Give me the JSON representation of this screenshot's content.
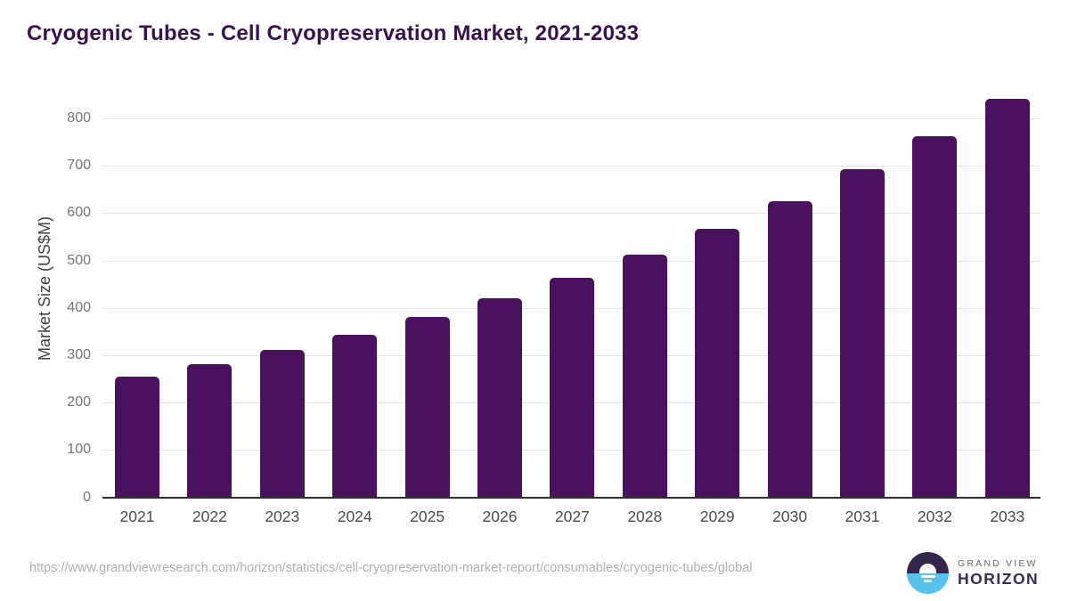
{
  "title": "Cryogenic Tubes - Cell Cryopreservation Market, 2021-2033",
  "source_url": "https://www.grandviewresearch.com/horizon/statistics/cell-cryopreservation-market-report/consumables/cryogenic-tubes/global",
  "logo": {
    "line1": "GRAND VIEW",
    "line2": "HORIZON",
    "icon": "horizon-sun-circle-icon",
    "icon_top_color": "#33264A",
    "icon_bottom_color": "#58C2EC"
  },
  "colors": {
    "title": "#3A1150",
    "bar": "#4A115F",
    "grid": "#E5E5E5",
    "axis_line": "#2E2E2E",
    "y_tick_label": "#757575",
    "x_tick_label": "#4A4A4A",
    "y_axis_title": "#3F3F3F",
    "source_url": "#B0B0B0",
    "background": "#FFFFFF"
  },
  "chart_data": {
    "type": "bar",
    "title": "Cryogenic Tubes - Cell Cryopreservation Market, 2021-2033",
    "categories": [
      "2021",
      "2022",
      "2023",
      "2024",
      "2025",
      "2026",
      "2027",
      "2028",
      "2029",
      "2030",
      "2031",
      "2032",
      "2033"
    ],
    "values": [
      255,
      281,
      311,
      344,
      380,
      421,
      464,
      513,
      567,
      626,
      692,
      762,
      841
    ],
    "xlabel": "",
    "ylabel": "Market Size (US$M)",
    "ylim": [
      0,
      850
    ],
    "yticks": [
      0,
      100,
      200,
      300,
      400,
      500,
      600,
      700,
      800
    ],
    "grid": true,
    "legend": "none",
    "bar_color": "#4A115F"
  }
}
